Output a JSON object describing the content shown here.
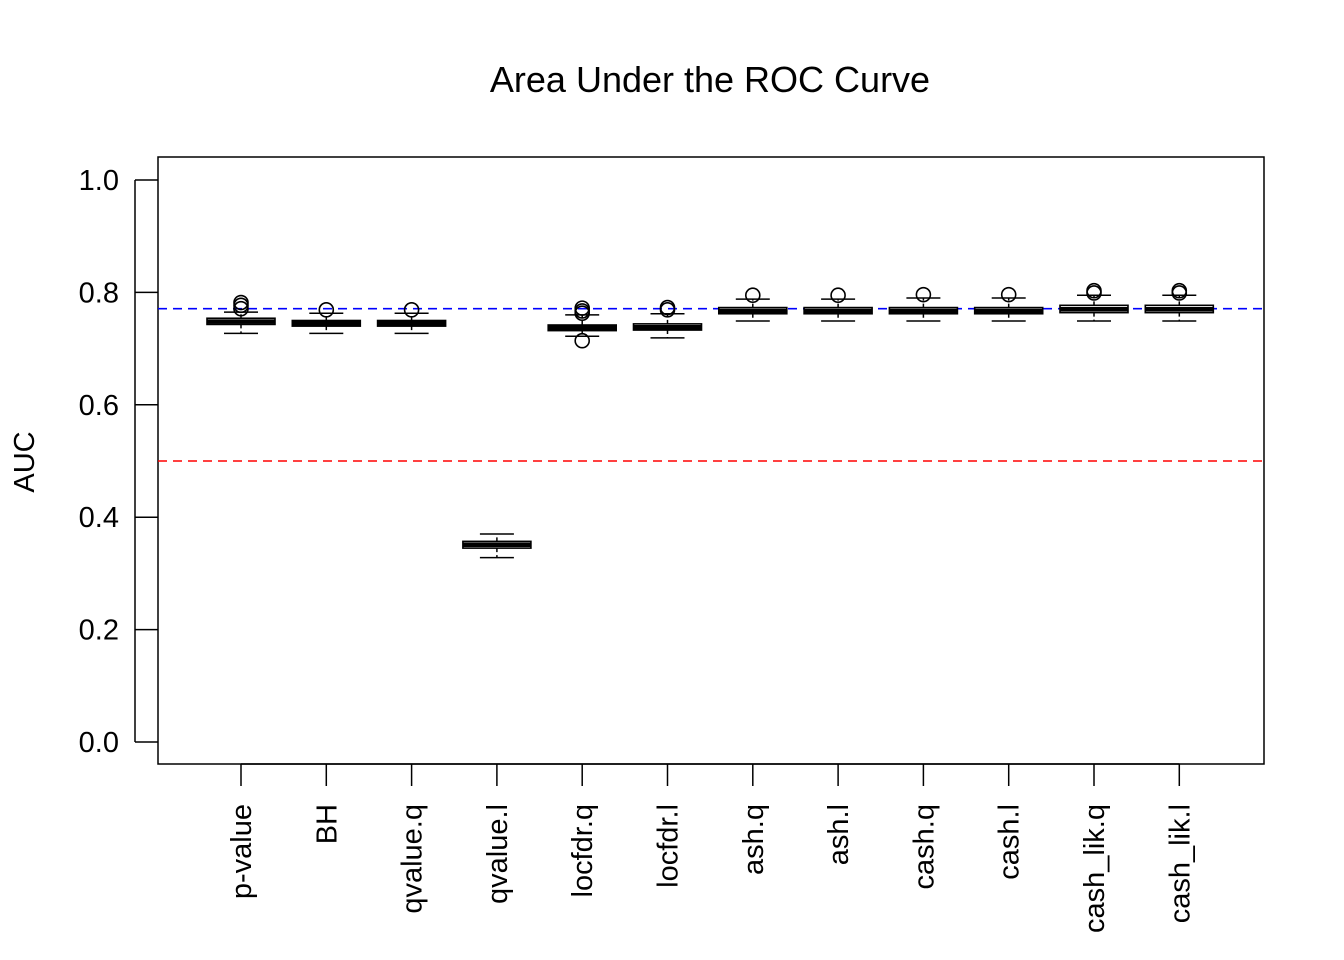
{
  "chart_data": {
    "type": "boxplot",
    "title": "Area Under the ROC Curve",
    "xlabel": "",
    "ylabel": "AUC",
    "ylim": [
      0,
      1.0
    ],
    "yticks": [
      "0.0",
      "0.2",
      "0.4",
      "0.6",
      "0.8",
      "1.0"
    ],
    "categories": [
      "p-value",
      "BH",
      "qvalue.q",
      "qvalue.l",
      "locfdr.q",
      "locfdr.l",
      "ash.q",
      "ash.l",
      "cash.q",
      "cash.l",
      "cash_lik.q",
      "cash_lik.l"
    ],
    "boxes": [
      {
        "whisker_low": 0.727,
        "q1": 0.743,
        "median": 0.748,
        "q3": 0.754,
        "whisker_high": 0.765,
        "outliers": [
          0.771,
          0.777,
          0.782
        ]
      },
      {
        "whisker_low": 0.727,
        "q1": 0.74,
        "median": 0.745,
        "q3": 0.75,
        "whisker_high": 0.763,
        "outliers": [
          0.769
        ]
      },
      {
        "whisker_low": 0.727,
        "q1": 0.74,
        "median": 0.745,
        "q3": 0.75,
        "whisker_high": 0.763,
        "outliers": [
          0.769
        ]
      },
      {
        "whisker_low": 0.328,
        "q1": 0.345,
        "median": 0.351,
        "q3": 0.357,
        "whisker_high": 0.37,
        "outliers": []
      },
      {
        "whisker_low": 0.722,
        "q1": 0.732,
        "median": 0.737,
        "q3": 0.742,
        "whisker_high": 0.76,
        "outliers": [
          0.714,
          0.763,
          0.767,
          0.772
        ]
      },
      {
        "whisker_low": 0.719,
        "q1": 0.733,
        "median": 0.738,
        "q3": 0.744,
        "whisker_high": 0.762,
        "outliers": [
          0.769,
          0.773
        ]
      },
      {
        "whisker_low": 0.749,
        "q1": 0.762,
        "median": 0.767,
        "q3": 0.773,
        "whisker_high": 0.788,
        "outliers": [
          0.795
        ]
      },
      {
        "whisker_low": 0.749,
        "q1": 0.762,
        "median": 0.767,
        "q3": 0.773,
        "whisker_high": 0.788,
        "outliers": [
          0.795
        ]
      },
      {
        "whisker_low": 0.749,
        "q1": 0.762,
        "median": 0.767,
        "q3": 0.773,
        "whisker_high": 0.79,
        "outliers": [
          0.796
        ]
      },
      {
        "whisker_low": 0.749,
        "q1": 0.762,
        "median": 0.767,
        "q3": 0.773,
        "whisker_high": 0.79,
        "outliers": [
          0.796
        ]
      },
      {
        "whisker_low": 0.749,
        "q1": 0.764,
        "median": 0.77,
        "q3": 0.777,
        "whisker_high": 0.795,
        "outliers": [
          0.799,
          0.803
        ]
      },
      {
        "whisker_low": 0.749,
        "q1": 0.764,
        "median": 0.77,
        "q3": 0.777,
        "whisker_high": 0.795,
        "outliers": [
          0.799,
          0.803
        ]
      }
    ],
    "reference_lines": [
      {
        "value": 0.771,
        "color": "#0000ff",
        "style": "dashed"
      },
      {
        "value": 0.5,
        "color": "#ff0000",
        "style": "dashed"
      }
    ],
    "grid": false,
    "legend": "none"
  }
}
